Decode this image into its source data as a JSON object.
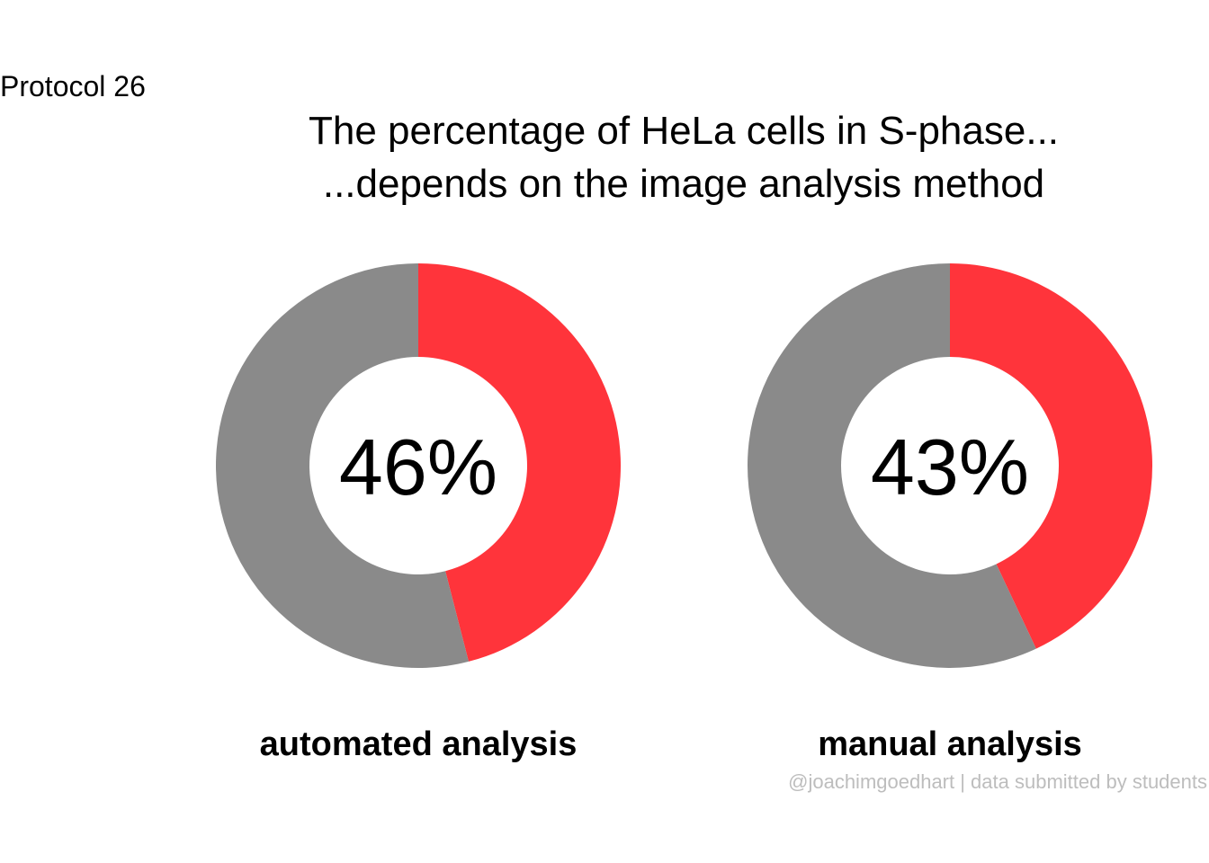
{
  "tag": "Protocol 26",
  "title_line1": "The percentage of HeLa cells in S-phase...",
  "title_line2": "...depends on the image analysis method",
  "caption": "@joachimgoedhart | data submitted by students",
  "colors": {
    "highlight": "#FF343B",
    "rest": "#8A8A8A",
    "background": "#FFFFFF"
  },
  "chart_data": [
    {
      "type": "pie",
      "category": "automated analysis",
      "center_label": "46%",
      "slices": [
        {
          "label": "S-phase",
          "value": 46,
          "color": "#FF343B"
        },
        {
          "label": "other",
          "value": 54,
          "color": "#8A8A8A"
        }
      ]
    },
    {
      "type": "pie",
      "category": "manual analysis",
      "center_label": "43%",
      "slices": [
        {
          "label": "S-phase",
          "value": 43,
          "color": "#FF343B"
        },
        {
          "label": "other",
          "value": 57,
          "color": "#8A8A8A"
        }
      ]
    }
  ]
}
